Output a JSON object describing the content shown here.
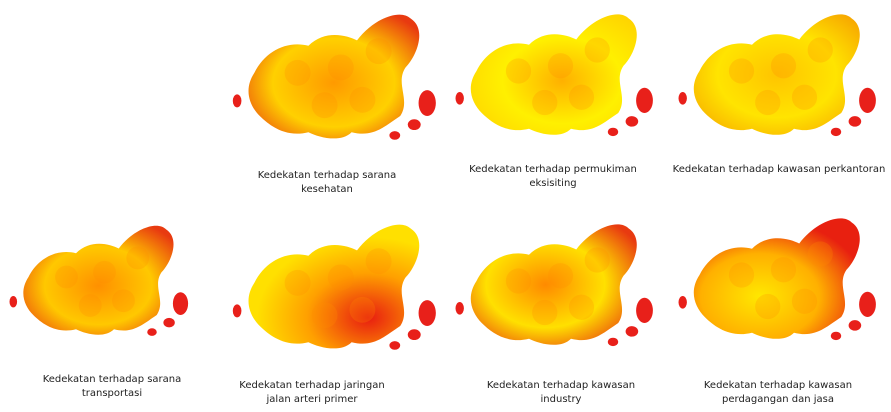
{
  "maps": [
    {
      "caption": [
        "Kedekatan terhadap sarana",
        "kesehatan"
      ]
    },
    {
      "caption": [
        "Kedekatan terhadap permukiman",
        "eksisiting"
      ]
    },
    {
      "caption": [
        "Kedekatan terhadap kawasan perkantoran"
      ]
    },
    {
      "caption": [
        "Kedekatan terhadap sarana",
        "transportasi"
      ]
    },
    {
      "caption": [
        "Kedekatan terhadap jaringan",
        "jalan arteri primer"
      ]
    },
    {
      "caption": [
        "Kedekatan terhadap kawasan",
        "industry"
      ]
    },
    {
      "caption": [
        "Kedekatan terhadap kawasan",
        "perdagangan dan jasa"
      ]
    }
  ]
}
